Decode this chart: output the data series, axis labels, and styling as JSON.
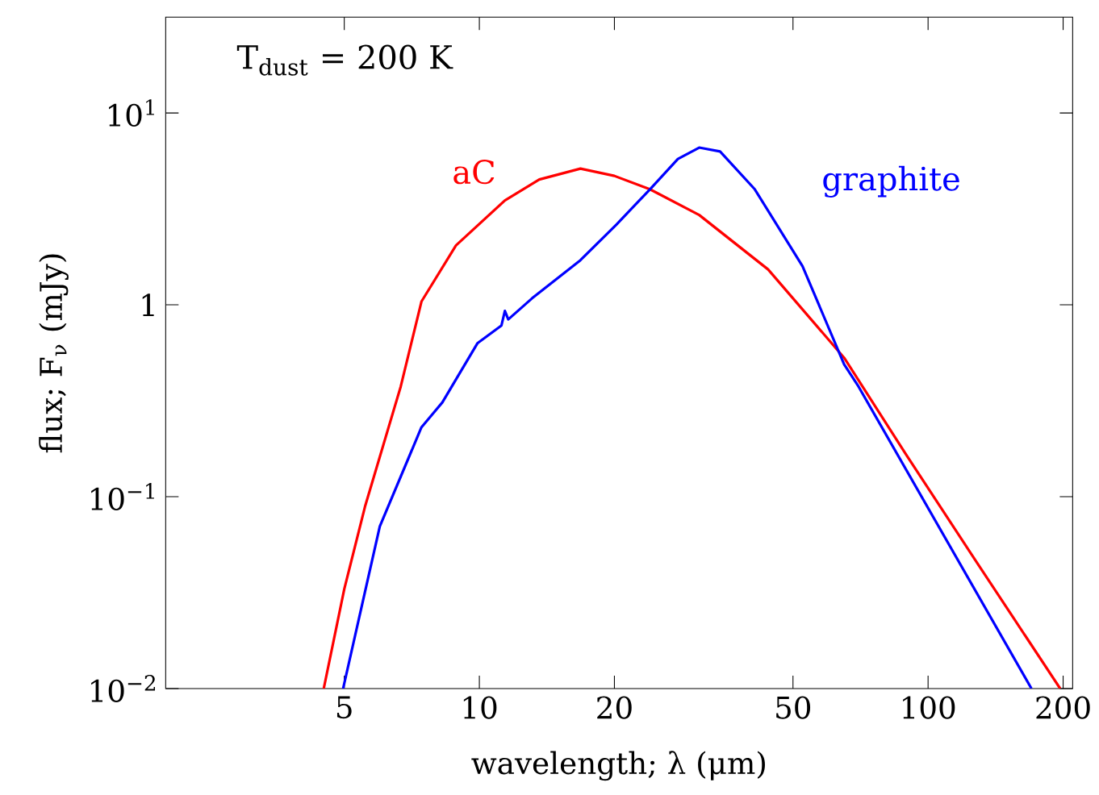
{
  "chart_data": {
    "type": "line",
    "xlabel": "wavelength; λ (μm)",
    "ylabel": "flux; F$_{ν}$ (mJy)",
    "log": "xy",
    "grid": false,
    "legend": false,
    "xlim": [
      2,
      210
    ],
    "ylim": [
      0.01,
      31.6
    ],
    "xticks": [
      5,
      10,
      20,
      50,
      100,
      200
    ],
    "yticks": [
      {
        "value": 0.01,
        "label": "10$^{−2}$"
      },
      {
        "value": 0.1,
        "label": "10$^{−1}$"
      },
      1,
      {
        "value": 10,
        "label": "10$^{1}$"
      }
    ],
    "annotations": [
      "T$_{dust}$ = 200 K"
    ],
    "series": [
      {
        "name": "aC",
        "color": "#ff0000",
        "x": [
          4.5,
          5.0,
          5.57,
          6.68,
          7.43,
          8.87,
          11.4,
          13.6,
          16.8,
          20,
          24,
          30.9,
          44,
          65,
          89.6,
          128,
          197
        ],
        "values": [
          0.01,
          0.033,
          0.09,
          0.375,
          1.04,
          2.04,
          3.5,
          4.5,
          5.13,
          4.7,
          4.0,
          2.94,
          1.53,
          0.53,
          0.164,
          0.046,
          0.01
        ]
      },
      {
        "name": "graphite",
        "color": "#0000ff",
        "x": [
          4.97,
          6.0,
          7.43,
          8.27,
          9.9,
          11.2,
          11.4,
          11.6,
          13.1,
          16.8,
          20.2,
          24,
          27.7,
          30.9,
          34.4,
          41.1,
          52.5,
          65,
          70,
          170
        ],
        "values": [
          0.01,
          0.07,
          0.23,
          0.31,
          0.63,
          0.78,
          0.93,
          0.84,
          1.08,
          1.71,
          2.62,
          4.0,
          5.76,
          6.6,
          6.3,
          4.0,
          1.59,
          0.49,
          0.375,
          0.01
        ]
      }
    ]
  }
}
